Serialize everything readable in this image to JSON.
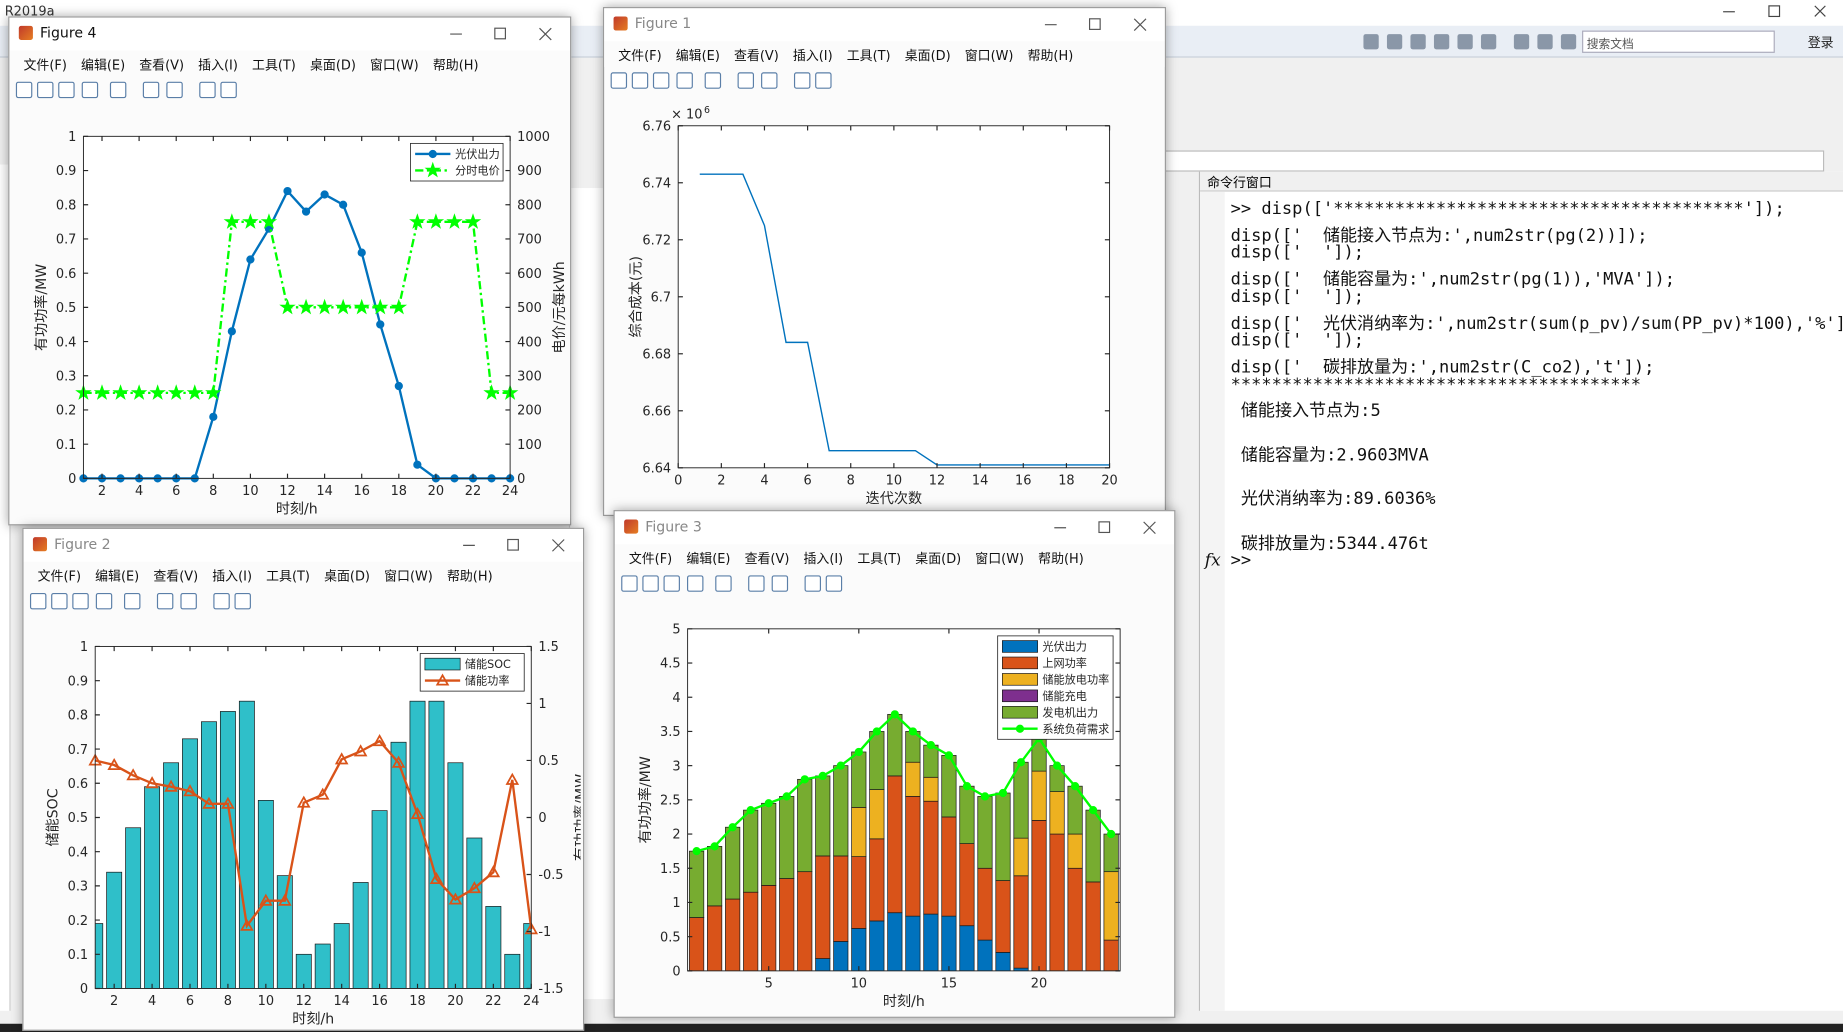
{
  "app_title": "R2019a",
  "search_placeholder": "搜索文档",
  "login": "登录",
  "menu": [
    "文件(F)",
    "编辑(E)",
    "查看(V)",
    "插入(I)",
    "工具(T)",
    "桌面(D)",
    "窗口(W)",
    "帮助(H)"
  ],
  "windows": [
    {
      "title": "Figure 4"
    },
    {
      "title": "Figure 1"
    },
    {
      "title": "Figure 2"
    },
    {
      "title": "Figure 3"
    }
  ],
  "command_window": {
    "title": "命令行窗口",
    "function_browser": "fx",
    "prompt": ">>",
    "input": [
      ">> disp(['****************************************']);",
      "disp(['  储能接入节点为:',num2str(pg(2))]);",
      "disp(['  ']);",
      "disp(['  储能容量为:',num2str(pg(1)),'MVA']);",
      "disp(['  ']);",
      "disp(['  光伏消纳率为:',num2str(sum(p_pv)/sum(PP_pv)*100),'%']);",
      "disp(['  ']);",
      "disp(['  碳排放量为:',num2str(C_co2),'t']);"
    ],
    "output": [
      "****************************************",
      " 储能接入节点为:5",
      " 储能容量为:2.9603MVA",
      " 光伏消纳率为:89.6036%",
      " 碳排放量为:5344.476t"
    ]
  },
  "chart_data": [
    {
      "type": "line",
      "x": [
        1,
        2,
        3,
        4,
        5,
        6,
        7,
        8,
        9,
        10,
        11,
        12,
        13,
        14,
        15,
        16,
        17,
        18,
        19,
        20,
        21,
        22,
        23,
        24
      ],
      "xlim": [
        1,
        24
      ],
      "xticks": [
        2,
        4,
        6,
        8,
        10,
        12,
        14,
        16,
        18,
        20,
        22,
        24
      ],
      "ylim": [
        0,
        1
      ],
      "yticks": [
        0,
        0.1,
        0.2,
        0.3,
        0.4,
        0.5,
        0.6,
        0.7,
        0.8,
        0.9,
        1
      ],
      "y2lim": [
        0,
        1000
      ],
      "y2ticks": [
        0,
        100,
        200,
        300,
        400,
        500,
        600,
        700,
        800,
        900,
        1000
      ],
      "xlabel": "时刻/h",
      "ylabel": "有功功率/MW",
      "y2label": "电价/元每kWh",
      "legend": "upper right",
      "series": [
        {
          "name": "光伏出力",
          "color": "#0072bd",
          "marker": "o",
          "linestyle": "-",
          "values": [
            0,
            0,
            0,
            0,
            0,
            0,
            0,
            0.18,
            0.43,
            0.64,
            0.73,
            0.84,
            0.78,
            0.83,
            0.8,
            0.66,
            0.45,
            0.27,
            0.04,
            0,
            0,
            0,
            0,
            0
          ]
        },
        {
          "name": "分时电价",
          "color": "#00ff00",
          "marker": "p",
          "linestyle": "-.",
          "axis": "y2",
          "values": [
            250,
            250,
            250,
            250,
            250,
            250,
            250,
            250,
            750,
            750,
            750,
            500,
            500,
            500,
            500,
            500,
            500,
            500,
            750,
            750,
            750,
            750,
            250,
            250
          ]
        }
      ]
    },
    {
      "type": "line",
      "x": [
        1,
        2,
        3,
        4,
        5,
        6,
        7,
        8,
        9,
        10,
        11,
        12,
        13,
        14,
        15,
        16,
        17,
        18,
        19,
        20
      ],
      "xlim": [
        0,
        20
      ],
      "xticks": [
        0,
        2,
        4,
        6,
        8,
        10,
        12,
        14,
        16,
        18,
        20
      ],
      "ylim": [
        6.64,
        6.76
      ],
      "yticks": [
        6.64,
        6.66,
        6.68,
        6.7,
        6.72,
        6.74,
        6.76
      ],
      "y_multiplier": "× 10",
      "y_multiplier_exponent": "6",
      "xlabel": "迭代次数",
      "ylabel": "综合成本(元)",
      "color": "#0072bd",
      "values": [
        6.743,
        6.743,
        6.743,
        6.725,
        6.684,
        6.684,
        6.646,
        6.646,
        6.646,
        6.646,
        6.646,
        6.641,
        6.641,
        6.641,
        6.641,
        6.641,
        6.641,
        6.641,
        6.641,
        6.641
      ]
    },
    {
      "type": "bar",
      "x": [
        1,
        2,
        3,
        4,
        5,
        6,
        7,
        8,
        9,
        10,
        11,
        12,
        13,
        14,
        15,
        16,
        17,
        18,
        19,
        20,
        21,
        22,
        23,
        24
      ],
      "xlim": [
        1,
        24
      ],
      "xticks": [
        2,
        4,
        6,
        8,
        10,
        12,
        14,
        16,
        18,
        20,
        22,
        24
      ],
      "ylim": [
        0,
        1
      ],
      "yticks": [
        0,
        0.1,
        0.2,
        0.3,
        0.4,
        0.5,
        0.6,
        0.7,
        0.8,
        0.9,
        1
      ],
      "y2lim": [
        -1.5,
        1.5
      ],
      "y2ticks": [
        -1.5,
        -1,
        -0.5,
        0,
        0.5,
        1,
        1.5
      ],
      "xlabel": "时刻/h",
      "ylabel": "储能SOC",
      "y2label": "有功功率/MW",
      "legend": "upper right",
      "series": [
        {
          "name": "储能SOC",
          "color": "#2fbfc9",
          "values": [
            0.19,
            0.34,
            0.47,
            0.59,
            0.66,
            0.73,
            0.78,
            0.81,
            0.84,
            0.55,
            0.33,
            0.1,
            0.13,
            0.19,
            0.31,
            0.52,
            0.72,
            0.84,
            0.84,
            0.66,
            0.44,
            0.24,
            0.1,
            0.19
          ]
        },
        {
          "name": "储能功率",
          "type": "line",
          "axis": "y2",
          "color": "#d95319",
          "marker": "^",
          "linestyle": "-",
          "values": [
            0.5,
            0.46,
            0.37,
            0.3,
            0.27,
            0.23,
            0.12,
            0.12,
            -0.95,
            -0.73,
            -0.73,
            0.13,
            0.2,
            0.51,
            0.58,
            0.67,
            0.48,
            0.03,
            -0.54,
            -0.72,
            -0.62,
            -0.48,
            0.33,
            -0.98
          ]
        }
      ]
    },
    {
      "type": "stacked_bar",
      "x": [
        1,
        2,
        3,
        4,
        5,
        6,
        7,
        8,
        9,
        10,
        11,
        12,
        13,
        14,
        15,
        16,
        17,
        18,
        19,
        20,
        21,
        22,
        23,
        24
      ],
      "xlim": [
        0.5,
        24.5
      ],
      "xticks": [
        5,
        10,
        15,
        20
      ],
      "ylim": [
        0,
        5
      ],
      "yticks": [
        0,
        0.5,
        1,
        1.5,
        2,
        2.5,
        3,
        3.5,
        4,
        4.5,
        5
      ],
      "xlabel": "时刻/h",
      "ylabel": "有功功率/MW",
      "legend": "upper right",
      "series": [
        {
          "name": "光伏出力",
          "color": "#0072bd",
          "values": [
            0,
            0,
            0,
            0,
            0,
            0,
            0,
            0.18,
            0.43,
            0.62,
            0.73,
            0.85,
            0.8,
            0.83,
            0.8,
            0.66,
            0.45,
            0.27,
            0.04,
            0,
            0,
            0,
            0,
            0
          ]
        },
        {
          "name": "上网功率",
          "color": "#d95319",
          "values": [
            0.78,
            0.95,
            1.05,
            1.15,
            1.25,
            1.35,
            1.45,
            1.5,
            1.25,
            1.05,
            1.2,
            2.0,
            1.75,
            1.65,
            1.45,
            1.2,
            1.05,
            1.05,
            1.35,
            2.2,
            2.0,
            1.5,
            1.3,
            0.45
          ]
        },
        {
          "name": "储能放电功率",
          "color": "#edb120",
          "values": [
            0,
            0,
            0,
            0,
            0,
            0,
            0,
            0,
            0,
            0.72,
            0.72,
            0,
            0.5,
            0.35,
            0,
            0,
            0,
            0,
            0.55,
            0.72,
            0.62,
            0.5,
            0,
            1.0
          ]
        },
        {
          "name": "储能充电",
          "color": "#7e2f8e",
          "values": [
            0,
            0,
            0,
            0,
            0,
            0,
            0,
            0,
            0,
            0,
            0,
            0,
            0,
            0,
            0,
            0,
            0,
            0,
            0,
            0,
            0,
            0,
            0,
            0
          ]
        },
        {
          "name": "发电机出力",
          "color": "#77ac30",
          "values": [
            0.97,
            0.87,
            1.05,
            1.2,
            1.2,
            1.2,
            1.35,
            1.17,
            1.32,
            0.81,
            0.85,
            0.9,
            0.45,
            0.47,
            0.9,
            0.84,
            1.05,
            1.28,
            1.11,
            0.48,
            0.38,
            0.7,
            1.05,
            0.55
          ]
        },
        {
          "name": "系统负荷需求",
          "type": "line",
          "color": "#00ff00",
          "marker": "o",
          "linestyle": "-",
          "values": [
            1.75,
            1.82,
            2.1,
            2.35,
            2.45,
            2.55,
            2.8,
            2.85,
            3.0,
            3.2,
            3.5,
            3.75,
            3.5,
            3.3,
            3.15,
            2.7,
            2.55,
            2.6,
            3.05,
            3.4,
            3.0,
            2.7,
            2.35,
            2.0
          ]
        }
      ]
    }
  ]
}
